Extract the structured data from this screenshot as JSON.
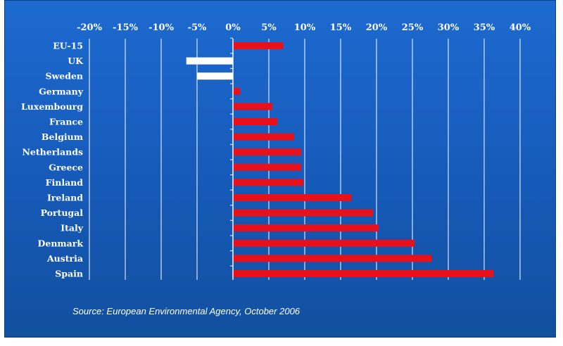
{
  "chart_data": {
    "type": "bar",
    "orientation": "horizontal",
    "categories": [
      "EU-15",
      "UK",
      "Sweden",
      "Germany",
      "Luxembourg",
      "France",
      "Belgium",
      "Netherlands",
      "Greece",
      "Finland",
      "Ireland",
      "Portugal",
      "Italy",
      "Denmark",
      "Austria",
      "Spain"
    ],
    "values": [
      7,
      -6.5,
      -5,
      1,
      5.5,
      6.2,
      8.5,
      9.5,
      9.5,
      9.8,
      16.5,
      19.5,
      20.3,
      25.3,
      27.7,
      36.3
    ],
    "bar_colors": [
      "#e8101a",
      "#ffffff",
      "#ffffff",
      "#e8101a",
      "#e8101a",
      "#e8101a",
      "#e8101a",
      "#e8101a",
      "#e8101a",
      "#e8101a",
      "#e8101a",
      "#e8101a",
      "#e8101a",
      "#e8101a",
      "#e8101a",
      "#e8101a"
    ],
    "x_ticks": [
      "-20%",
      "-15%",
      "-10%",
      "-5%",
      "0%",
      "5%",
      "10%",
      "15%",
      "20%",
      "25%",
      "30%",
      "35%",
      "40%"
    ],
    "xlim": [
      -20,
      40
    ],
    "x_axis_position": "top",
    "grid": true,
    "title": "",
    "xlabel": "",
    "ylabel": ""
  },
  "source_text": "Source: European Environmental Agency, October 2006",
  "colors": {
    "background": "#1a63c6",
    "positive_bar": "#e8101a",
    "negative_bar": "#ffffff",
    "grid": "#ffffff"
  }
}
